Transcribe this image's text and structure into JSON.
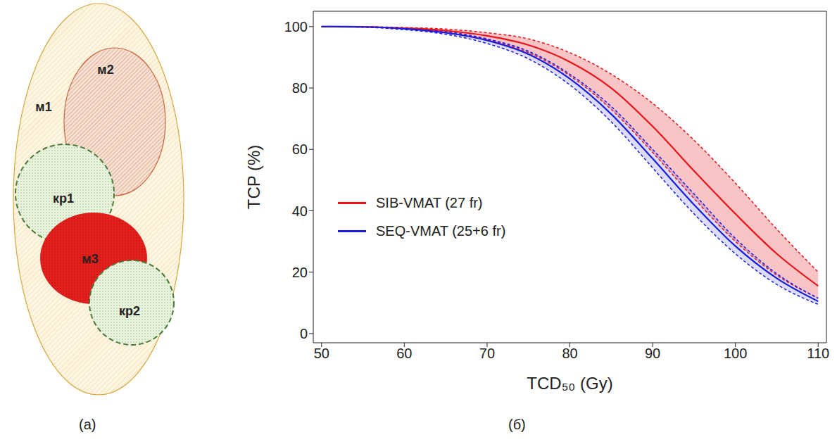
{
  "chart_data": {
    "type": "line",
    "xlabel": "TCD₅₀ (Gy)",
    "ylabel": "TCP (%)",
    "x": [
      50,
      55,
      60,
      65,
      70,
      75,
      80,
      85,
      90,
      95,
      100,
      105,
      110
    ],
    "xlim": [
      49,
      111
    ],
    "xticks": [
      50,
      60,
      70,
      80,
      90,
      100,
      110
    ],
    "ylim": [
      -3,
      105
    ],
    "yticks": [
      0,
      20,
      40,
      60,
      80,
      100
    ],
    "legend": "left",
    "series": [
      {
        "name": "SIB-VMAT (27 fr)",
        "color": "#e8141b",
        "values": [
          100,
          99.9,
          99.5,
          98.7,
          97,
          94,
          88.5,
          80,
          67.5,
          53,
          39,
          26,
          15.5
        ],
        "lower": [
          100,
          99.9,
          99.3,
          98,
          95.8,
          91.5,
          84,
          73,
          59,
          44,
          30,
          19,
          11.5
        ],
        "upper": [
          100,
          100,
          99.7,
          99.2,
          98,
          96,
          91.5,
          84.5,
          75,
          63,
          49,
          34,
          20
        ]
      },
      {
        "name": "SEQ-VMAT (25+6 fr)",
        "color": "#1c1cdc",
        "values": [
          100,
          99.9,
          99.3,
          98,
          95.5,
          91,
          83,
          71.5,
          57,
          42,
          28.5,
          18,
          10.5
        ],
        "lower": [
          100,
          99.8,
          99,
          97.5,
          94.5,
          89.5,
          81,
          69,
          54,
          39,
          26,
          16,
          9.5
        ],
        "upper": [
          100,
          99.9,
          99.5,
          98.4,
          96,
          92,
          84.5,
          74,
          60,
          45.5,
          31,
          19.5,
          11.5
        ]
      }
    ]
  },
  "diagram": {
    "regions": [
      "м1",
      "м2",
      "кр1",
      "м3",
      "кр2"
    ]
  },
  "panel_labels": [
    "(а)",
    "(б)"
  ]
}
